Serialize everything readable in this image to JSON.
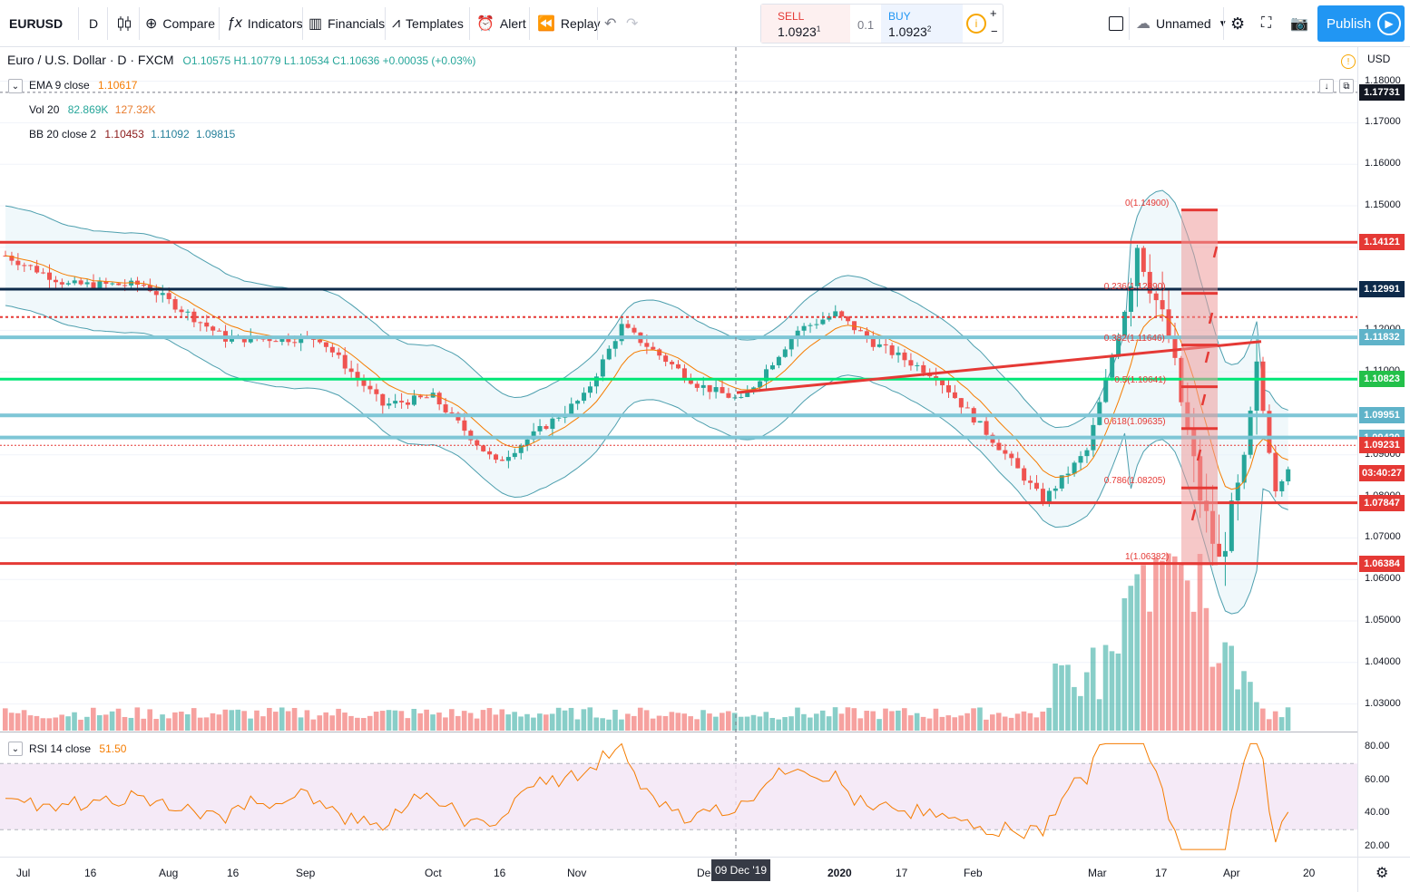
{
  "toolbar": {
    "symbol": "EURUSD",
    "interval": "D",
    "compare": "Compare",
    "indicators": "Indicators",
    "financials": "Financials",
    "templates": "Templates",
    "alert": "Alert",
    "replay": "Replay",
    "sell_label": "SELL",
    "sell_price": "1.0923",
    "sell_sup": "1",
    "spread": "0.1",
    "buy_label": "BUY",
    "buy_price": "1.0923",
    "buy_sup": "2",
    "layout_name": "Unnamed",
    "publish": "Publish"
  },
  "legend": {
    "title": "Euro / U.S. Dollar · D · FXCM",
    "ohlc": "O1.10575  H1.10779  L1.10534  C1.10636  +0.00035 (+0.03%)",
    "ema_name": "EMA 9 close",
    "ema_val": "1.10617",
    "vol_name": "Vol 20",
    "vol_val1": "82.869K",
    "vol_val2": "127.32K",
    "bb_name": "BB 20 close 2",
    "bb_v1": "1.10453",
    "bb_v2": "1.11092",
    "bb_v3": "1.09815",
    "rsi_name": "RSI 14 close",
    "rsi_val": "51.50",
    "currency": "USD"
  },
  "price_axis": [
    "1.18000",
    "1.17000",
    "1.16000",
    "1.15000",
    "1.14000",
    "1.13000",
    "1.12000",
    "1.11000",
    "1.10000",
    "1.09000",
    "1.08000",
    "1.07000",
    "1.06000",
    "1.05000",
    "1.04000",
    "1.03000"
  ],
  "rsi_axis": [
    "80.00",
    "60.00",
    "40.00",
    "20.00"
  ],
  "time_axis": [
    "Jul",
    "16",
    "Aug",
    "16",
    "Sep",
    "Oct",
    "16",
    "Nov",
    "Dec",
    "2020",
    "17",
    "Feb",
    "Mar",
    "17",
    "Apr",
    "20"
  ],
  "crosshair_date": "09 Dec '19",
  "price_tags": [
    {
      "label": "1.17731",
      "color": "#131722"
    },
    {
      "label": "1.14121",
      "color": "#e53935"
    },
    {
      "label": "1.12991",
      "color": "#0d2a4a"
    },
    {
      "label": "1.11832",
      "color": "#5fb3c9"
    },
    {
      "label": "1.10823",
      "color": "#23c04a"
    },
    {
      "label": "1.09951",
      "color": "#5fb3c9"
    },
    {
      "label": "1.09420",
      "color": "#5fb3c9"
    },
    {
      "label": "1.09231",
      "color": "#e53935"
    },
    {
      "label": "03:40:27",
      "color": "#e53935"
    },
    {
      "label": "1.07847",
      "color": "#e53935"
    },
    {
      "label": "1.06384",
      "color": "#e53935"
    }
  ],
  "fib_levels": [
    {
      "label": "0(1.14900)"
    },
    {
      "label": "0.236(1.12890)"
    },
    {
      "label": "0.382(1.11646)"
    },
    {
      "label": "0.5(1.10641)"
    },
    {
      "label": "0.618(1.09635)"
    },
    {
      "label": "0.786(1.08205)"
    },
    {
      "label": "1(1.06382)"
    }
  ],
  "colors": {
    "up": "#26a69a",
    "down": "#ef5350",
    "support": "#e53935",
    "navy": "#0d2a4a",
    "teal_line": "#7ec6d6",
    "green_line": "#00e676",
    "publish": "#2196f3"
  }
}
